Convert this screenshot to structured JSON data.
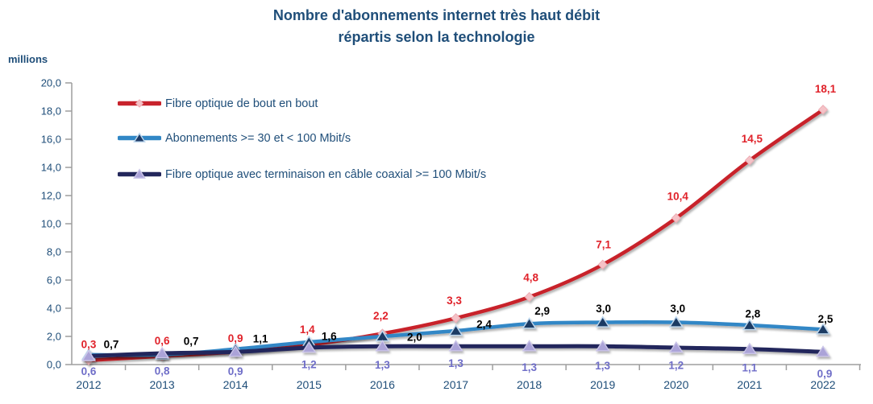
{
  "title": {
    "line1": "Nombre d'abonnements internet très haut débit",
    "line2": "répartis selon la technologie"
  },
  "y_axis": {
    "unit_label": "millions",
    "min": 0,
    "max": 20,
    "step": 2,
    "tick_labels": [
      "0,0",
      "2,0",
      "4,0",
      "6,0",
      "8,0",
      "10,0",
      "12,0",
      "14,0",
      "16,0",
      "18,0",
      "20,0"
    ],
    "text_color": "#1F4E79",
    "line_color": "#9E9E9E"
  },
  "x_axis": {
    "categories": [
      "2012",
      "2013",
      "2014",
      "2015",
      "2016",
      "2017",
      "2018",
      "2019",
      "2020",
      "2021",
      "2022"
    ],
    "text_color": "#1F4E79",
    "line_color": "#9E9E9E"
  },
  "chart_data": {
    "type": "line",
    "title": "Nombre d'abonnements internet très haut débit répartis selon la technologie",
    "ylabel": "millions",
    "ylim": [
      0,
      20
    ],
    "y_tick_step": 2,
    "grid": false,
    "smooth_lines": true,
    "categories": [
      "2012",
      "2013",
      "2014",
      "2015",
      "2016",
      "2017",
      "2018",
      "2019",
      "2020",
      "2021",
      "2022"
    ],
    "series": [
      {
        "name": "Fibre optique de bout en bout",
        "slug": "fibre-optique-bout-en-bout",
        "values": [
          0.3,
          0.6,
          0.9,
          1.4,
          2.2,
          3.3,
          4.8,
          7.1,
          10.4,
          14.5,
          18.1
        ],
        "labels": [
          "0,3",
          "0,6",
          "0,9",
          "1,4",
          "2,2",
          "3,3",
          "4,8",
          "7,1",
          "10,4",
          "14,5",
          "18,1"
        ],
        "color": "#C8232C",
        "line_width": 4.5,
        "marker": "diamond",
        "marker_fill": "#F5C2C7",
        "marker_stroke": "#ECA6AE",
        "label_color": "#E0222A"
      },
      {
        "name": "Abonnements >= 30 et < 100 Mbit/s",
        "slug": "abonnements-30-100-mbits",
        "values": [
          0.7,
          0.7,
          1.1,
          1.6,
          2.0,
          2.4,
          2.9,
          3.0,
          3.0,
          2.8,
          2.5
        ],
        "labels": [
          "0,7",
          "0,7",
          "1,1",
          "1,6",
          "2,0",
          "2,4",
          "2,9",
          "3,0",
          "3,0",
          "2,8",
          "2,5"
        ],
        "color": "#3187C6",
        "line_width": 4.5,
        "marker": "triangle",
        "marker_fill": "#1E3A64",
        "marker_stroke": "#BDD7EE",
        "label_color": "#000000"
      },
      {
        "name": "Fibre optique avec terminaison en câble coaxial >= 100 Mbit/s",
        "slug": "fibre-coaxial-100-mbits",
        "values": [
          0.6,
          0.8,
          0.9,
          1.2,
          1.3,
          1.3,
          1.3,
          1.3,
          1.2,
          1.1,
          0.9
        ],
        "labels": [
          "0,6",
          "0,8",
          "0,9",
          "1,2",
          "1,3",
          "1,3",
          "1,3",
          "1,3",
          "1,2",
          "1,1",
          "0,9"
        ],
        "color": "#23275B",
        "line_width": 5,
        "marker": "triangle",
        "marker_fill": "#ABA3D8",
        "marker_stroke": "#CBC5E8",
        "label_color": "#6F6EC8"
      }
    ],
    "layout": {
      "legend_position": "inside-top-left",
      "label_offsets": [
        {
          "dx": [
            0,
            0,
            0,
            -2,
            -2,
            -2,
            2,
            1,
            2,
            3,
            3
          ],
          "dy": [
            -20,
            -19,
            -17,
            -19,
            -22,
            -22,
            -24,
            -25,
            -27,
            -27,
            -26
          ]
        },
        {
          "dx": [
            28,
            36,
            31,
            25,
            40,
            35,
            16,
            1,
            2,
            4,
            3
          ],
          "dy": [
            -13,
            -17,
            -13,
            -7,
            1,
            -8,
            -16,
            -17,
            -17,
            -14,
            -13
          ]
        },
        {
          "dx": [
            0,
            0,
            0,
            0,
            0,
            0,
            0,
            0,
            0,
            0,
            2
          ],
          "dy": [
            19,
            22,
            24,
            21,
            23,
            21,
            26,
            24,
            22,
            23,
            27
          ]
        }
      ]
    }
  }
}
